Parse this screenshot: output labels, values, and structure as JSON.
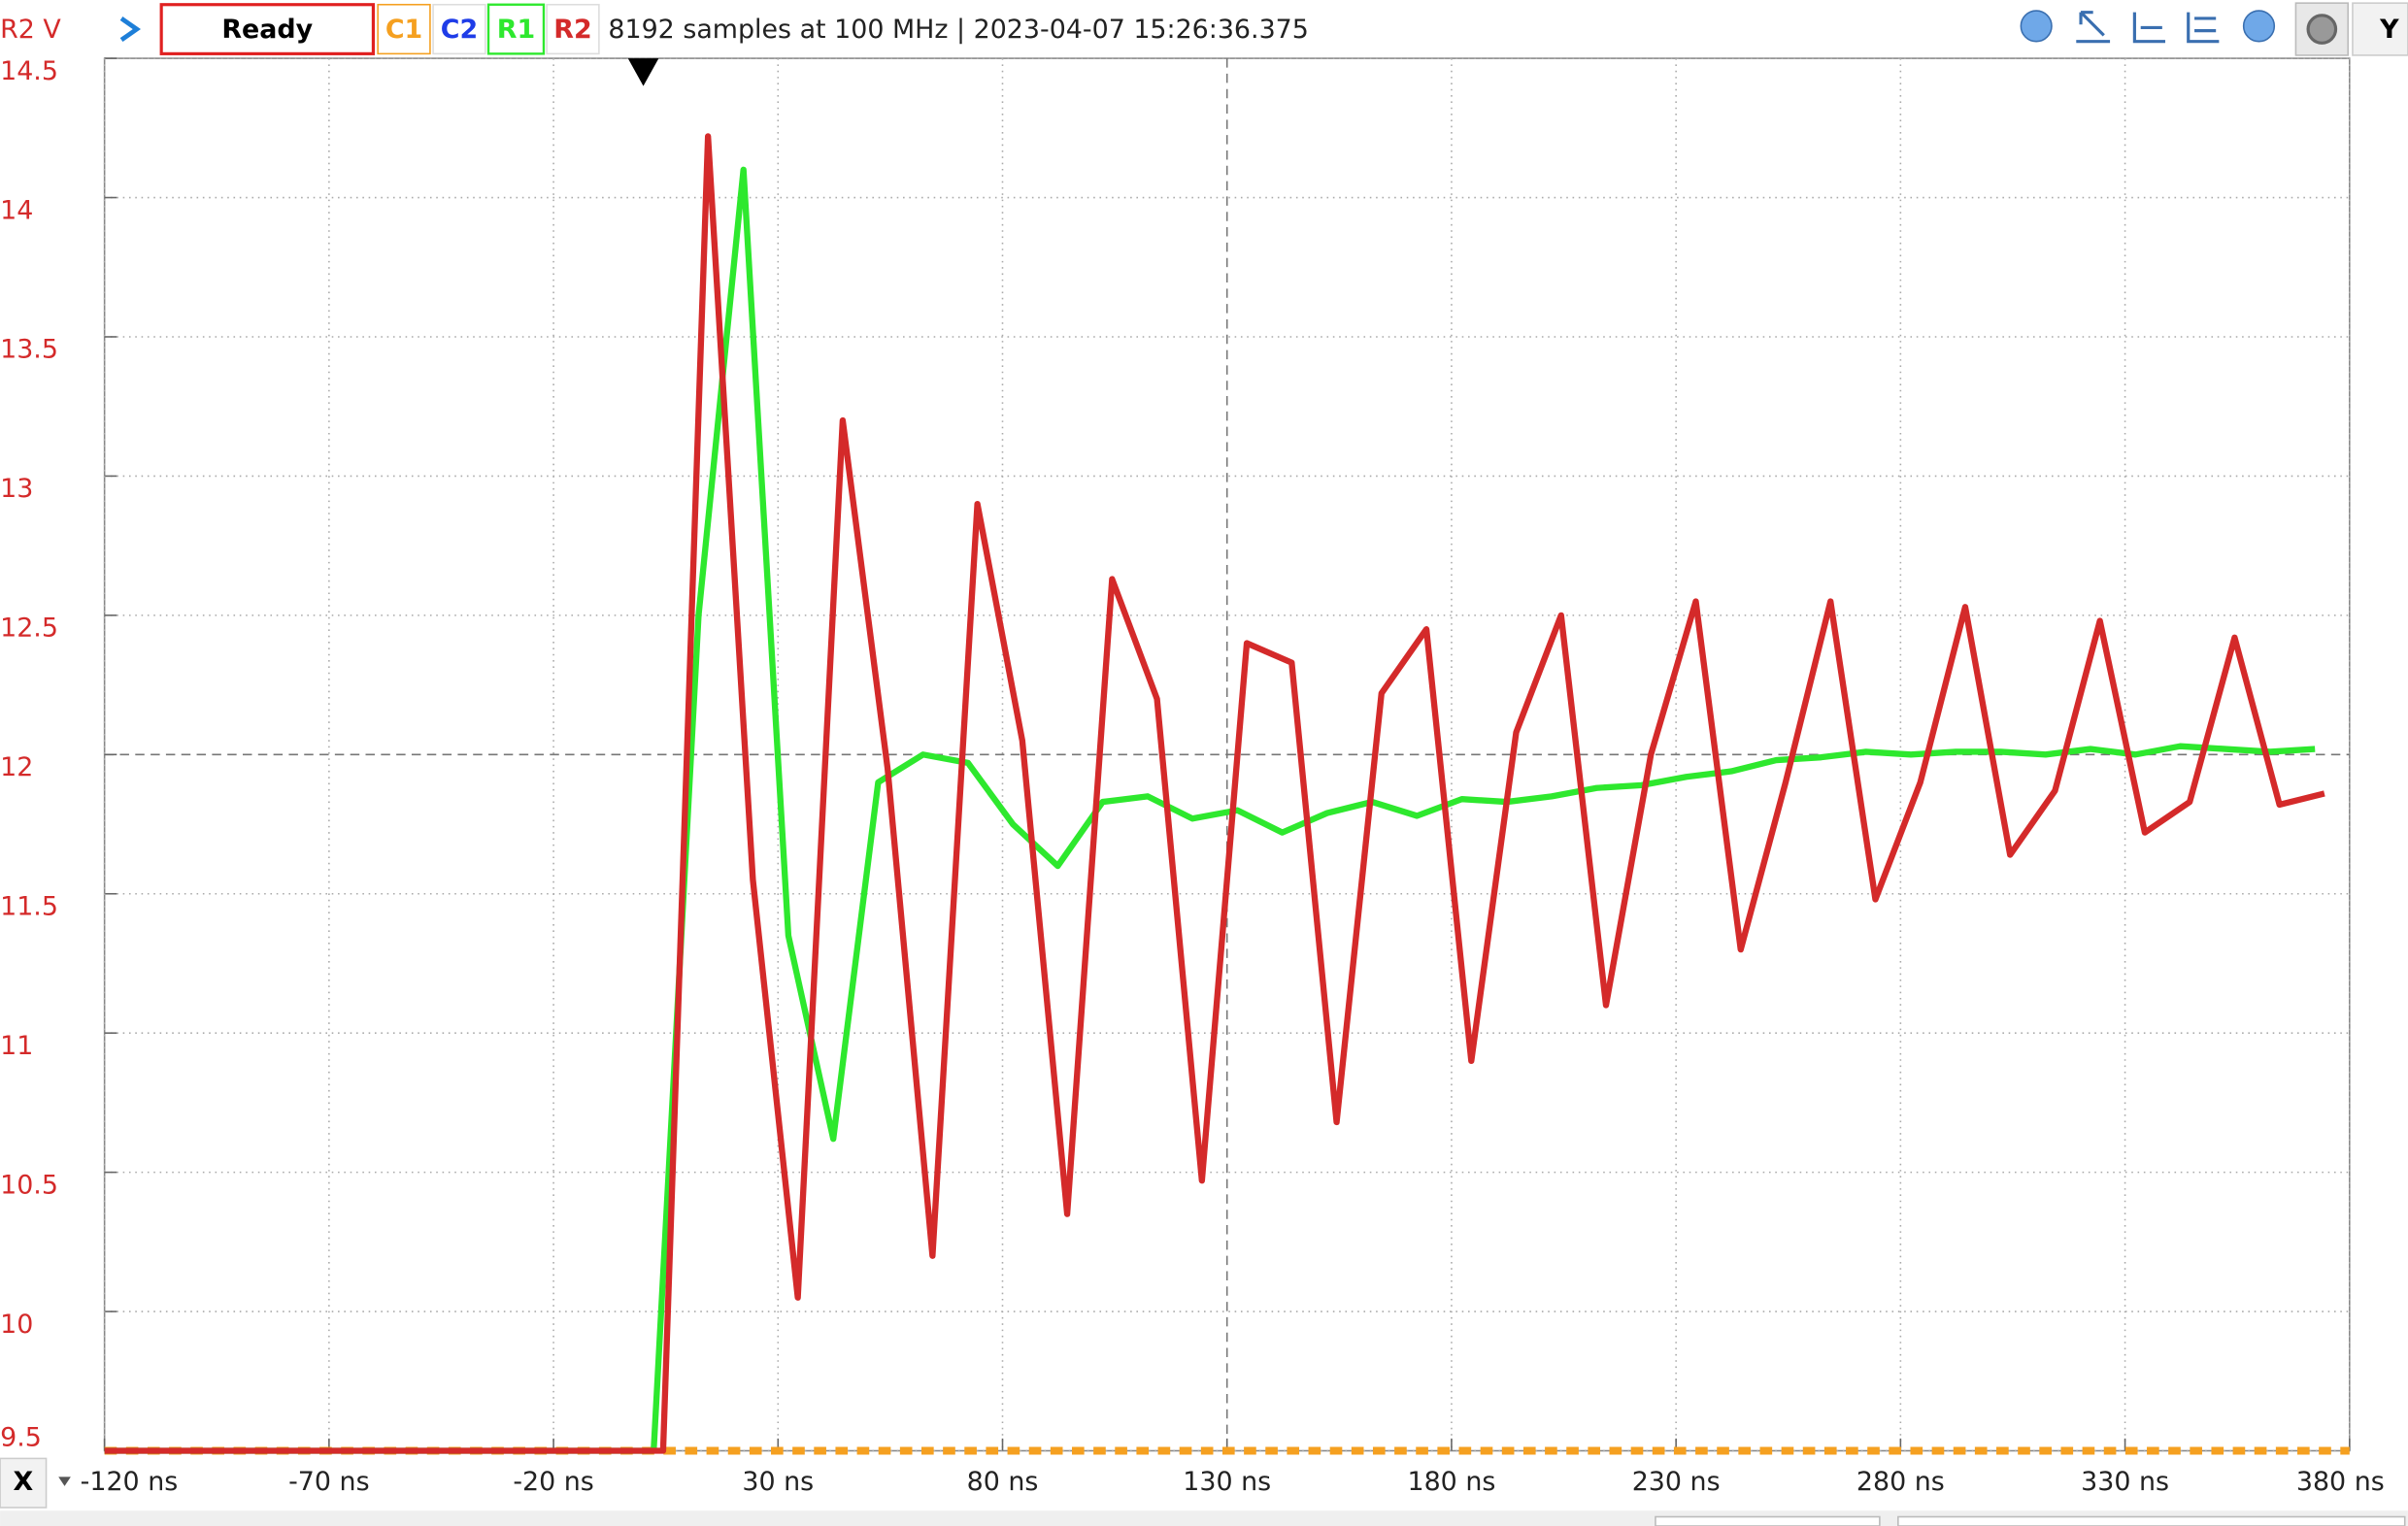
{
  "toolbar": {
    "status": "Ready",
    "channel_c2": "C2",
    "info": "8192 samples at 100 MHz | 2023-04-07 15:26:36.375",
    "x_button": "X",
    "y_button": "Y"
  },
  "chart_data": {
    "type": "line",
    "y_label": "R2 V",
    "xlim": [
      -120,
      380
    ],
    "ylim": [
      9.5,
      14.5
    ],
    "xticks": [
      {
        "value": -120,
        "label": "-120 ns"
      },
      {
        "value": -70,
        "label": "-70 ns"
      },
      {
        "value": -20,
        "label": "-20 ns"
      },
      {
        "value": 30,
        "label": "30 ns"
      },
      {
        "value": 80,
        "label": "80 ns"
      },
      {
        "value": 130,
        "label": "130 ns"
      },
      {
        "value": 180,
        "label": "180 ns"
      },
      {
        "value": 230,
        "label": "230 ns"
      },
      {
        "value": 280,
        "label": "280 ns"
      },
      {
        "value": 330,
        "label": "330 ns"
      },
      {
        "value": 380,
        "label": "380 ns"
      }
    ],
    "yticks": [
      14.5,
      14,
      13.5,
      13,
      12.5,
      12,
      11.5,
      11,
      10.5,
      10,
      9.5
    ],
    "grid": true,
    "trigger_x": 0,
    "series": [
      {
        "name": "C1",
        "color": "#f5a020",
        "dashed": true,
        "x": [
          -120,
          380
        ],
        "values": [
          9.5,
          9.5
        ]
      },
      {
        "name": "R1",
        "color": "#2ee82e",
        "dashed": false,
        "x": [
          -120,
          2.3,
          12.3,
          22.3,
          32.3,
          42.3,
          52.3,
          62.3,
          72.3,
          82.3,
          92.3,
          102.3,
          112.3,
          122.3,
          132.3,
          142.3,
          152.3,
          162.3,
          172.3,
          182.3,
          192.3,
          202.3,
          212.3,
          222.3,
          232.3,
          242.3,
          252.3,
          262.3,
          272.3,
          282.3,
          292.3,
          302.3,
          312.3,
          322.3,
          332.3,
          342.3,
          352.3,
          362.3,
          372.3
        ],
        "values": [
          9.5,
          9.5,
          12.5,
          14.1,
          11.35,
          10.62,
          11.9,
          12.0,
          11.97,
          11.75,
          11.6,
          11.83,
          11.85,
          11.77,
          11.8,
          11.72,
          11.79,
          11.83,
          11.78,
          11.84,
          11.83,
          11.85,
          11.88,
          11.89,
          11.92,
          11.94,
          11.98,
          11.99,
          12.01,
          12.0,
          12.01,
          12.01,
          12.0,
          12.02,
          12.0,
          12.03,
          12.02,
          12.01,
          12.02
        ]
      },
      {
        "name": "R2",
        "color": "#d42a2a",
        "dashed": false,
        "x": [
          -120,
          4.4,
          14.4,
          24.4,
          34.4,
          44.4,
          54.4,
          64.4,
          74.4,
          84.4,
          94.4,
          104.4,
          114.4,
          124.4,
          134.4,
          144.4,
          154.4,
          164.4,
          174.4,
          184.4,
          194.4,
          204.4,
          214.4,
          224.4,
          234.4,
          244.4,
          254.4,
          264.4,
          274.4,
          284.4,
          294.4,
          304.4,
          314.4,
          324.4,
          334.4,
          344.4,
          354.4,
          364.4,
          374.4
        ],
        "values": [
          9.5,
          9.5,
          14.22,
          11.55,
          10.05,
          13.2,
          11.95,
          10.2,
          12.9,
          12.05,
          10.35,
          12.63,
          12.2,
          10.47,
          12.4,
          12.33,
          10.68,
          12.22,
          12.45,
          10.9,
          12.08,
          12.5,
          11.1,
          12.0,
          12.55,
          11.3,
          11.9,
          12.55,
          11.48,
          11.9,
          12.53,
          11.64,
          11.87,
          12.48,
          11.72,
          11.83,
          12.42,
          11.82,
          11.86
        ]
      }
    ]
  }
}
